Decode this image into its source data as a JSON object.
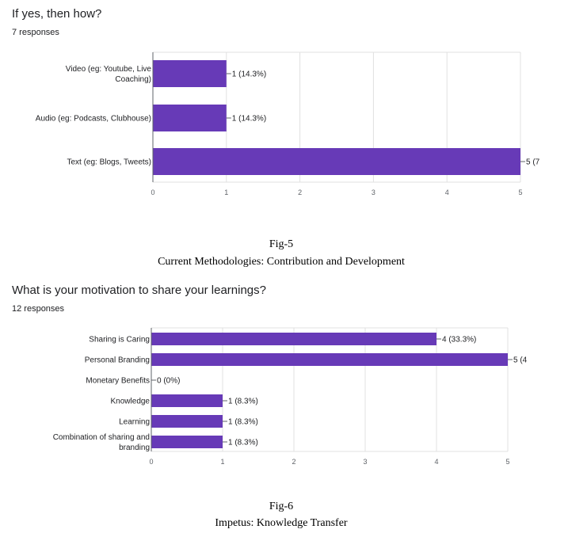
{
  "chart_data": [
    {
      "type": "bar",
      "orientation": "horizontal",
      "title": "If yes, then how?",
      "subtitle": "7 responses",
      "categories": [
        [
          "Video (eg: Youtube, Live",
          "Coaching)"
        ],
        [
          "Audio (eg: Podcasts, Clubhouse)"
        ],
        [
          "Text (eg: Blogs, Tweets)"
        ]
      ],
      "values": [
        1,
        1,
        5
      ],
      "data_labels": [
        "1 (14.3%)",
        "1 (14.3%)",
        "5 (7"
      ],
      "xticks": [
        "0",
        "1",
        "2",
        "3",
        "4",
        "5"
      ],
      "xlim": [
        0,
        5
      ],
      "grid": true,
      "color": "#673ab7",
      "caption": [
        "Fig-5",
        "Current Methodologies: Contribution and Development"
      ]
    },
    {
      "type": "bar",
      "orientation": "horizontal",
      "title": "What is your motivation to share your learnings?",
      "subtitle": "12 responses",
      "categories": [
        [
          "Sharing is Caring"
        ],
        [
          "Personal Branding"
        ],
        [
          "Monetary Benefits"
        ],
        [
          "Knowledge"
        ],
        [
          "Learning"
        ],
        [
          "Combination of sharing and",
          "branding"
        ]
      ],
      "values": [
        4,
        5,
        0,
        1,
        1,
        1
      ],
      "data_labels": [
        "4 (33.3%)",
        "5 (4",
        "0 (0%)",
        "1 (8.3%)",
        "1 (8.3%)",
        "1 (8.3%)"
      ],
      "xticks": [
        "0",
        "1",
        "2",
        "3",
        "4",
        "5"
      ],
      "xlim": [
        0,
        5
      ],
      "grid": true,
      "color": "#673ab7",
      "caption": [
        "Fig-6",
        "Impetus: Knowledge Transfer"
      ]
    }
  ]
}
